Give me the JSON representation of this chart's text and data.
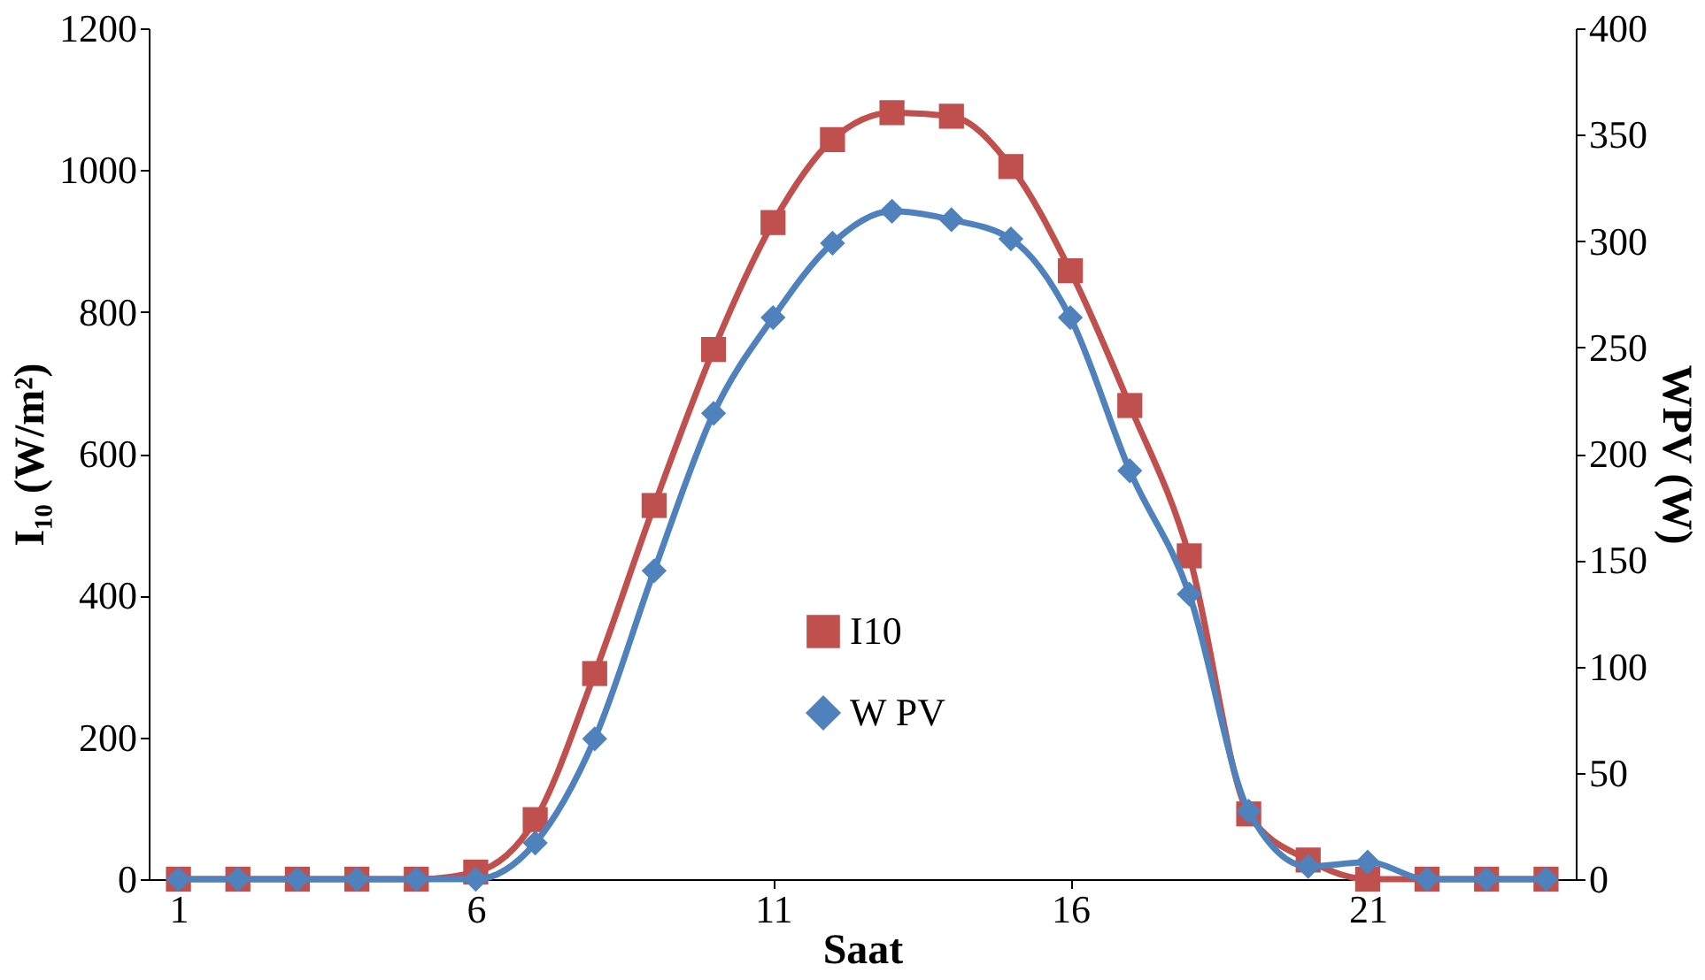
{
  "chart_data": {
    "type": "line",
    "xlabel": "Saat",
    "ylabel": "I₁₀ (W/m²)",
    "y2label": "WPV (W)",
    "x": [
      1,
      2,
      3,
      4,
      5,
      6,
      7,
      8,
      9,
      10,
      11,
      12,
      13,
      14,
      15,
      16,
      17,
      18,
      19,
      20,
      21,
      22,
      23,
      24
    ],
    "xlim": [
      0.5,
      24.5
    ],
    "xticks": [
      1,
      6,
      11,
      16,
      21
    ],
    "ylim": [
      0,
      1200
    ],
    "yticks": [
      0,
      200,
      400,
      600,
      800,
      1000,
      1200
    ],
    "y2lim": [
      0,
      400
    ],
    "y2ticks": [
      0,
      50,
      100,
      150,
      200,
      250,
      300,
      350,
      400
    ],
    "grid": false,
    "legend": "bottom",
    "line_style": "solid",
    "series": [
      {
        "name": "I10",
        "color": "#c0504d",
        "marker": "square",
        "values": [
          0,
          0,
          0,
          0,
          0,
          10,
          84,
          290,
          527,
          747,
          926,
          1043,
          1081,
          1076,
          1005,
          858,
          668,
          456,
          92,
          27,
          0,
          0,
          0,
          0
        ]
      },
      {
        "name": "W PV",
        "color": "#4f81bd",
        "marker": "diamond",
        "axis": "y2",
        "values": [
          0,
          0,
          0,
          0,
          0,
          0,
          17,
          66,
          145,
          219,
          264,
          299,
          314,
          310,
          301,
          264,
          192,
          134,
          32,
          6,
          8,
          0,
          0,
          0
        ]
      }
    ]
  }
}
